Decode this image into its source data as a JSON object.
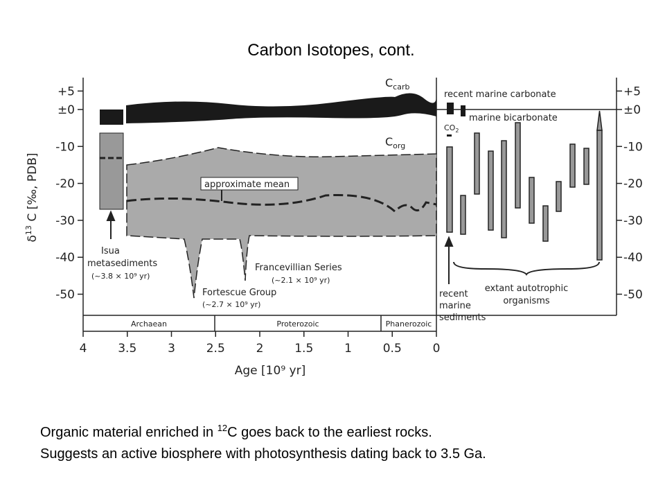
{
  "header": {
    "title": "Carbon Isotopes, cont."
  },
  "figure": {
    "y_label": {
      "delta": "δ",
      "sup": "13",
      "rest": " C [‰, PDB]"
    },
    "x_label": "Age [10⁹ yr]",
    "yticks": [
      {
        "value": 5,
        "label": "+5"
      },
      {
        "value": 0,
        "label": "±0"
      },
      -10,
      -20,
      -30,
      -40,
      -50
    ],
    "xticks": [
      4,
      3.5,
      3,
      2.5,
      2,
      1.5,
      1,
      0.5,
      0
    ],
    "c_carb": {
      "main": "C",
      "sub": "carb"
    },
    "c_org": {
      "main": "C",
      "sub": "org"
    },
    "approximate_mean": "approximate mean",
    "isua": [
      "Isua",
      "metasediments",
      "(~3.8 × 10⁹ yr)"
    ],
    "fortescue": [
      "Fortescue Group",
      "(~2.7 × 10⁹ yr)"
    ],
    "francevillian": [
      "Francevillian Series",
      "(~2.1 × 10⁹ yr)"
    ],
    "recent_marine_carbonate": "recent marine carbonate",
    "marine_bicarbonate": "marine bicarbonate",
    "co2": {
      "main": "CO",
      "sub": "2"
    },
    "recent_marine_sediments": [
      "recent",
      "marine",
      "sediments"
    ],
    "extant": [
      "extant autotrophic",
      "organisms"
    ],
    "eras": [
      "Archaean",
      "Proterozoic",
      "Phanerozoic"
    ]
  },
  "caption": {
    "line1": {
      "before": "Organic material enriched in ",
      "sup": "12",
      "after": "C goes back to the earliest rocks."
    },
    "line2": "Suggests an active biosphere with photosynthesis dating back to 3.5 Ga."
  }
}
